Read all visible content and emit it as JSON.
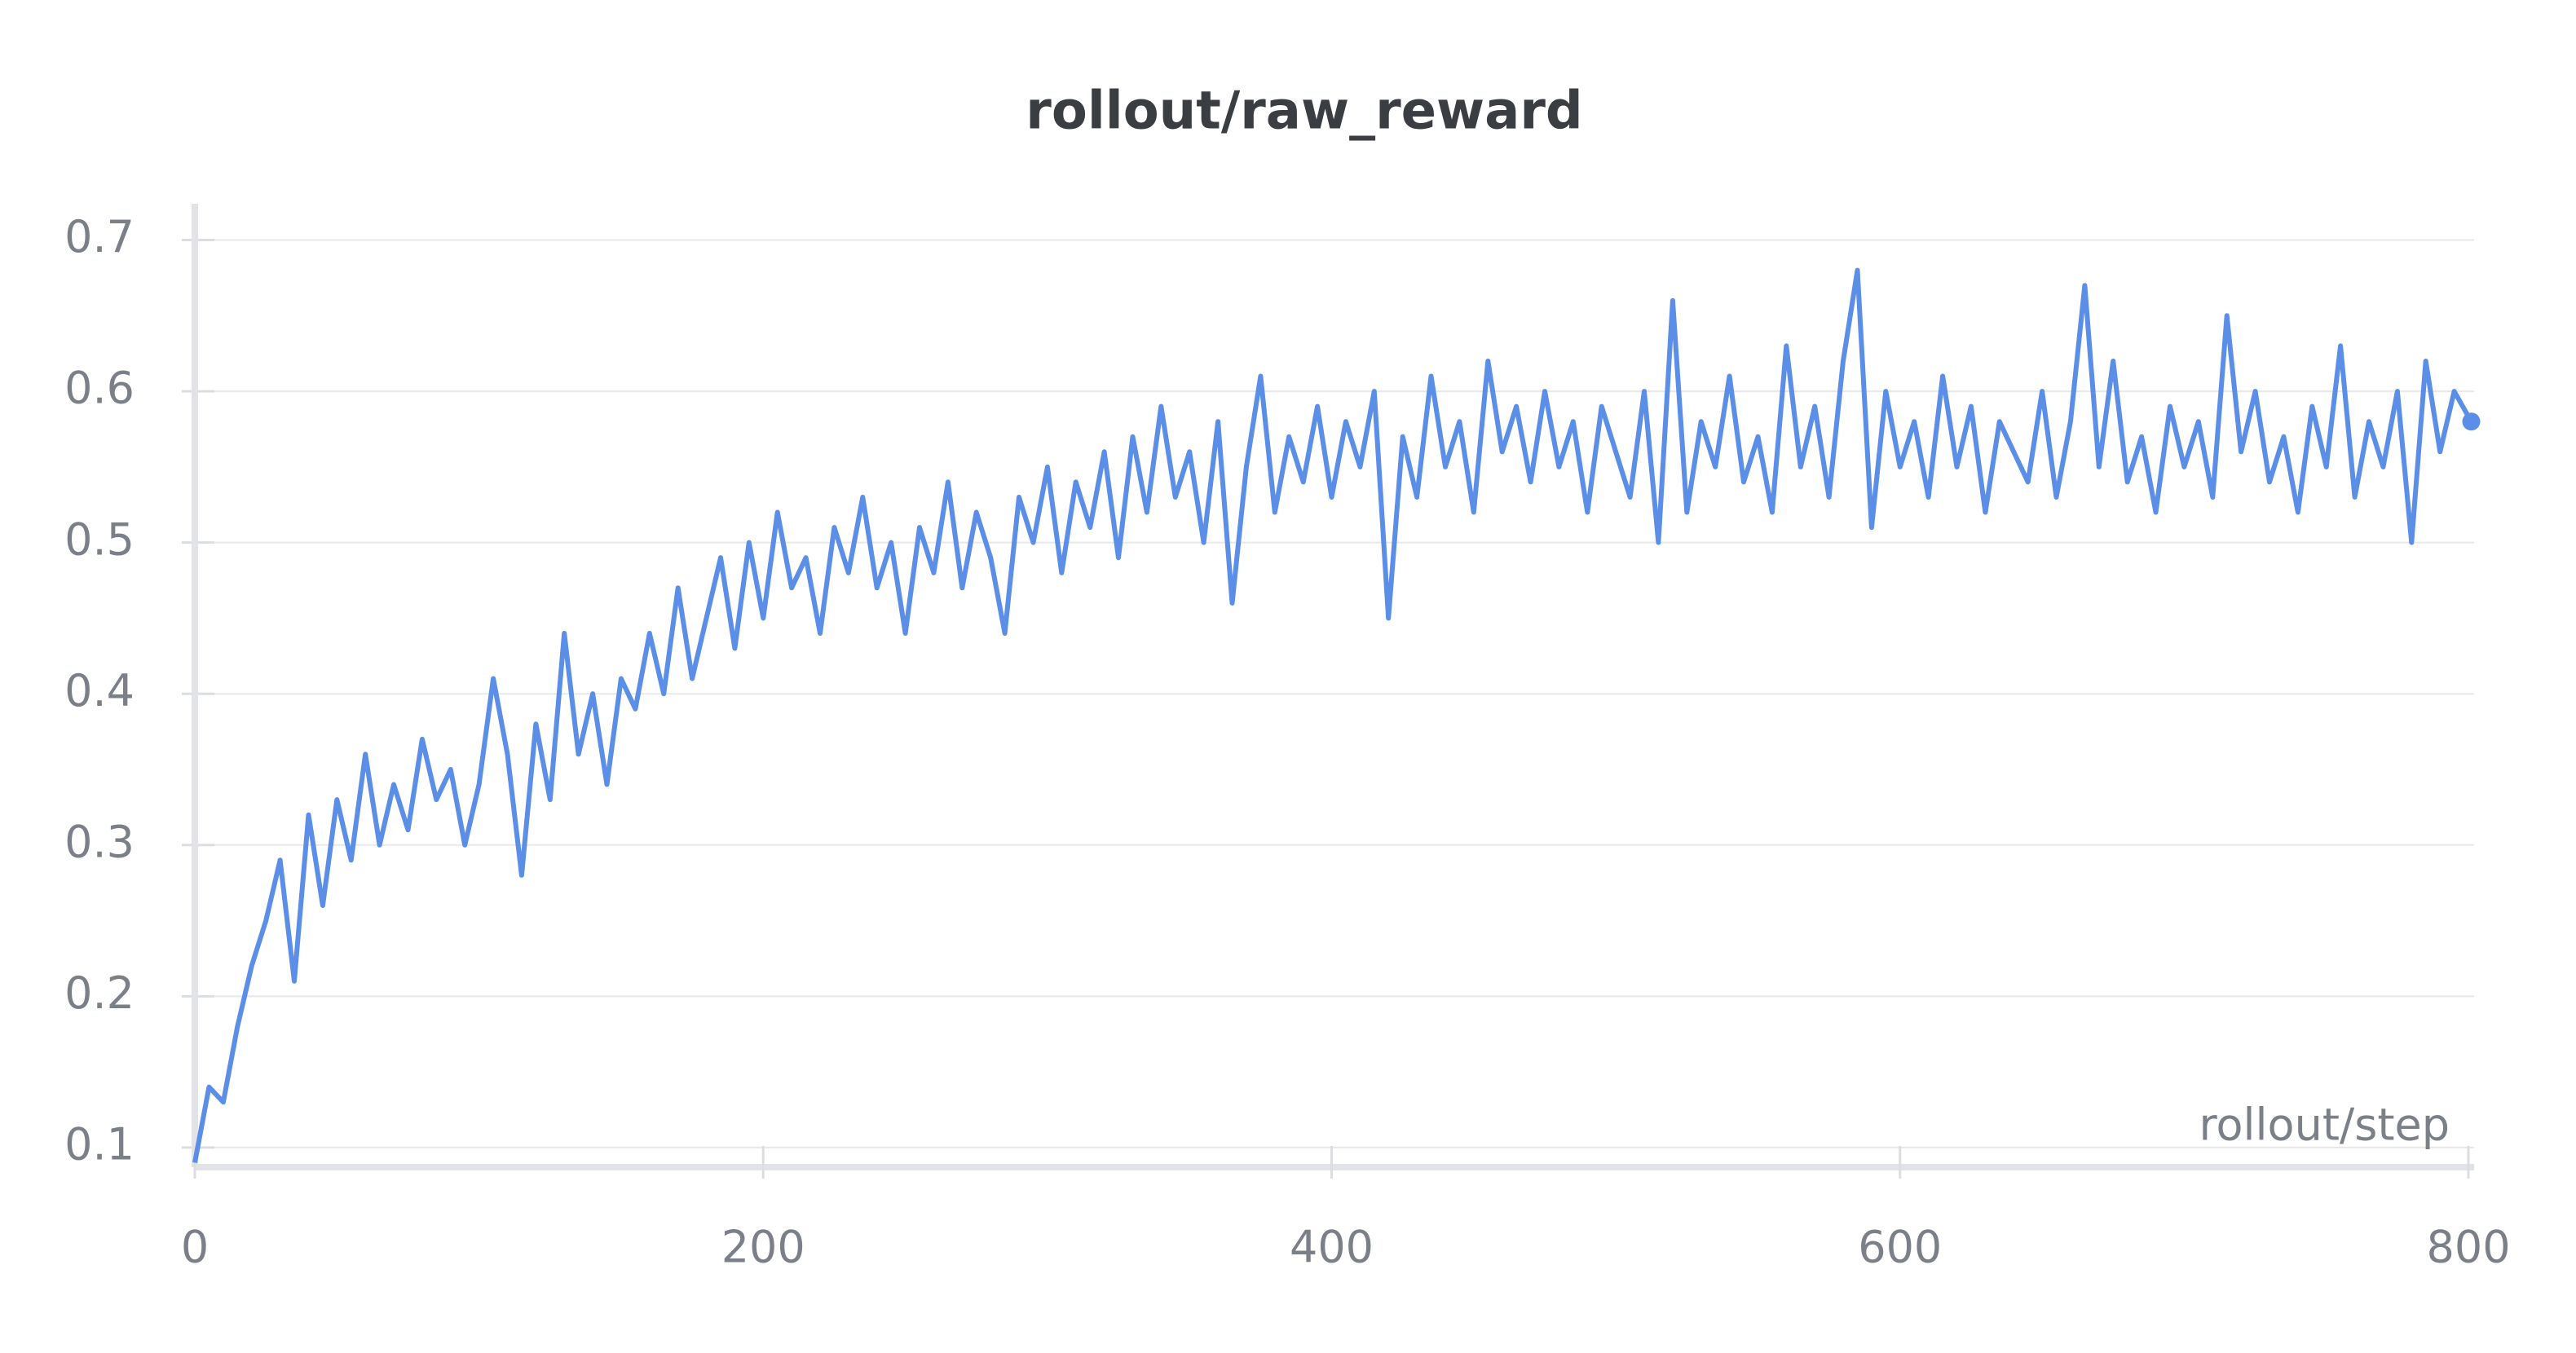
{
  "chart_data": {
    "type": "line",
    "title": "rollout/raw_reward",
    "x_label": "rollout/step",
    "color": "#5b8ee6",
    "grid": true,
    "xlim": [
      0,
      802
    ],
    "xticks": [
      0,
      200,
      400,
      600,
      800
    ],
    "ylim": [
      0.087,
      0.724
    ],
    "yticks": [
      0.1,
      0.2,
      0.3,
      0.4,
      0.5,
      0.6,
      0.7
    ],
    "x": [
      0,
      5,
      10,
      15,
      20,
      25,
      30,
      35,
      40,
      45,
      50,
      55,
      60,
      65,
      70,
      75,
      80,
      85,
      90,
      95,
      100,
      105,
      110,
      115,
      120,
      125,
      130,
      135,
      140,
      145,
      150,
      155,
      160,
      165,
      170,
      175,
      180,
      185,
      190,
      195,
      200,
      205,
      210,
      215,
      220,
      225,
      230,
      235,
      240,
      245,
      250,
      255,
      260,
      265,
      270,
      275,
      280,
      285,
      290,
      295,
      300,
      305,
      310,
      315,
      320,
      325,
      330,
      335,
      340,
      345,
      350,
      355,
      360,
      365,
      370,
      375,
      380,
      385,
      390,
      395,
      400,
      405,
      410,
      415,
      420,
      425,
      430,
      435,
      440,
      445,
      450,
      455,
      460,
      465,
      470,
      475,
      480,
      485,
      490,
      495,
      500,
      505,
      510,
      515,
      520,
      525,
      530,
      535,
      540,
      545,
      550,
      555,
      560,
      565,
      570,
      575,
      580,
      585,
      590,
      595,
      600,
      605,
      610,
      615,
      620,
      625,
      630,
      635,
      640,
      645,
      650,
      655,
      660,
      665,
      670,
      675,
      680,
      685,
      690,
      695,
      700,
      705,
      710,
      715,
      720,
      725,
      730,
      735,
      740,
      745,
      750,
      755,
      760,
      765,
      770,
      775,
      780,
      785,
      790,
      795,
      801
    ],
    "values": [
      0.09,
      0.14,
      0.13,
      0.18,
      0.22,
      0.25,
      0.29,
      0.21,
      0.32,
      0.26,
      0.33,
      0.29,
      0.36,
      0.3,
      0.34,
      0.31,
      0.37,
      0.33,
      0.35,
      0.3,
      0.34,
      0.41,
      0.36,
      0.28,
      0.38,
      0.33,
      0.44,
      0.36,
      0.4,
      0.34,
      0.41,
      0.39,
      0.44,
      0.4,
      0.47,
      0.41,
      0.45,
      0.49,
      0.43,
      0.5,
      0.45,
      0.52,
      0.47,
      0.49,
      0.44,
      0.51,
      0.48,
      0.53,
      0.47,
      0.5,
      0.44,
      0.51,
      0.48,
      0.54,
      0.47,
      0.52,
      0.49,
      0.44,
      0.53,
      0.5,
      0.55,
      0.48,
      0.54,
      0.51,
      0.56,
      0.49,
      0.57,
      0.52,
      0.59,
      0.53,
      0.56,
      0.5,
      0.58,
      0.46,
      0.55,
      0.61,
      0.52,
      0.57,
      0.54,
      0.59,
      0.53,
      0.58,
      0.55,
      0.6,
      0.45,
      0.57,
      0.53,
      0.61,
      0.55,
      0.58,
      0.52,
      0.62,
      0.56,
      0.59,
      0.54,
      0.6,
      0.55,
      0.58,
      0.52,
      0.59,
      0.56,
      0.53,
      0.6,
      0.5,
      0.66,
      0.52,
      0.58,
      0.55,
      0.61,
      0.54,
      0.57,
      0.52,
      0.63,
      0.55,
      0.59,
      0.53,
      0.62,
      0.68,
      0.51,
      0.6,
      0.55,
      0.58,
      0.53,
      0.61,
      0.55,
      0.59,
      0.52,
      0.58,
      0.56,
      0.54,
      0.6,
      0.53,
      0.58,
      0.67,
      0.55,
      0.62,
      0.54,
      0.57,
      0.52,
      0.59,
      0.55,
      0.58,
      0.53,
      0.65,
      0.56,
      0.6,
      0.54,
      0.57,
      0.52,
      0.59,
      0.55,
      0.63,
      0.53,
      0.58,
      0.55,
      0.6,
      0.5,
      0.62,
      0.56,
      0.6,
      0.58
    ]
  }
}
